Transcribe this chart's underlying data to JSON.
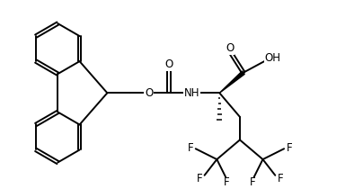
{
  "background_color": "#ffffff",
  "line_color": "#000000",
  "line_width": 1.4,
  "font_size": 8.5,
  "figsize": [
    4.04,
    2.1
  ],
  "dpi": 100,
  "xlim": [
    0,
    4.04
  ],
  "ylim": [
    0,
    2.1
  ]
}
